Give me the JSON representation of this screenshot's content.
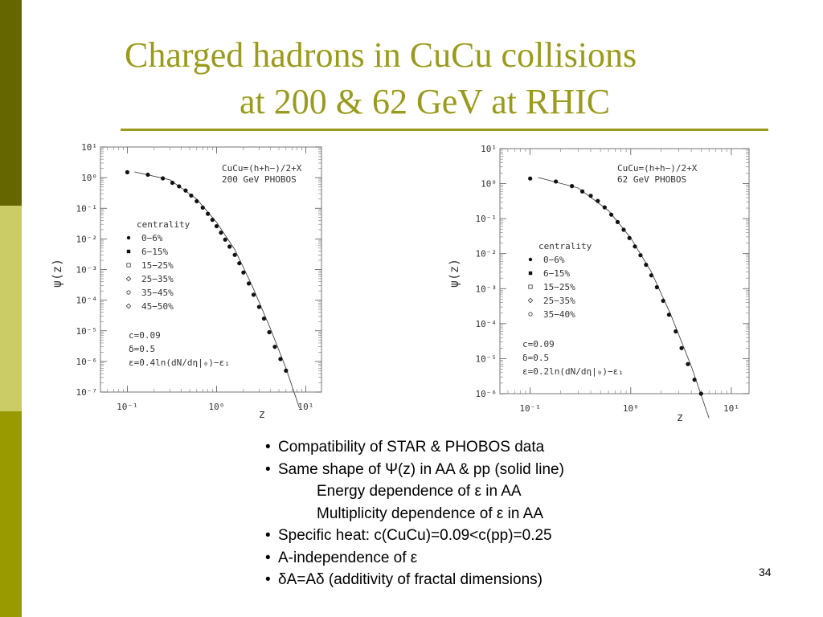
{
  "colors": {
    "accent": "#9a9a1c",
    "sidebar": [
      "#666600",
      "#cccc66",
      "#999900"
    ]
  },
  "slide": {
    "title_line1": "Charged hadrons in CuCu collisions",
    "title_line2": "at 200 & 62 GeV at RHIC",
    "page_number": "34"
  },
  "bullets": [
    {
      "text": "Compatibility of STAR & PHOBOS data",
      "bullet": "•",
      "indent": false
    },
    {
      "text": "Same shape of Ψ(z) in AA & pp (solid line)",
      "bullet": "•",
      "indent": false
    },
    {
      "text": "Energy dependence of ε in  AA",
      "bullet": "",
      "indent": true
    },
    {
      "text": "Multiplicity dependence of ε in AA",
      "bullet": "",
      "indent": true
    },
    {
      "text": "Specific heat: c(CuCu)=0.09<c(pp)=0.25",
      "bullet": "•",
      "indent": false
    },
    {
      "text": "A-independence of ε",
      "bullet": "•",
      "indent": false
    },
    {
      "text": "δA=Aδ (additivity of fractal dimensions)",
      "bullet": "•",
      "indent": false
    }
  ],
  "chart_data": [
    {
      "type": "scatter",
      "xscale": "log",
      "yscale": "log",
      "xlim": [
        0.05,
        15
      ],
      "ylim": [
        1e-07,
        10
      ],
      "xlabel": "z",
      "ylabel": "ψ(z)",
      "xticks": [
        "10⁻¹",
        "10⁰",
        "10¹"
      ],
      "yticks": [
        "10¹",
        "10⁰",
        "10⁻¹",
        "10⁻²",
        "10⁻³",
        "10⁻⁴",
        "10⁻⁵",
        "10⁻⁶",
        "10⁻⁷"
      ],
      "annotation_lines": [
        "CuCu=(h+h−)/2+X",
        "200 GeV PHOBOS"
      ],
      "legend_title": "centrality",
      "legend": [
        {
          "name": "0−6%",
          "marker": "circle-filled"
        },
        {
          "name": "6−15%",
          "marker": "square-filled"
        },
        {
          "name": "15−25%",
          "marker": "square-open"
        },
        {
          "name": "25−35%",
          "marker": "diamond-open"
        },
        {
          "name": "35−45%",
          "marker": "circle-open"
        },
        {
          "name": "45−50%",
          "marker": "diamond-open"
        }
      ],
      "params": [
        "c=0.09",
        "δ=0.5",
        "ε=0.4ln(dN/dη|₀)−ε₁"
      ],
      "points": [
        [
          0.1,
          1.5
        ],
        [
          0.17,
          1.25
        ],
        [
          0.25,
          0.95
        ],
        [
          0.32,
          0.68
        ],
        [
          0.38,
          0.52
        ],
        [
          0.45,
          0.38
        ],
        [
          0.52,
          0.26
        ],
        [
          0.6,
          0.17
        ],
        [
          0.7,
          0.105
        ],
        [
          0.8,
          0.066
        ],
        [
          0.9,
          0.042
        ],
        [
          1.0,
          0.026
        ],
        [
          1.12,
          0.016
        ],
        [
          1.25,
          0.0095
        ],
        [
          1.4,
          0.0056
        ],
        [
          1.6,
          0.003
        ],
        [
          1.8,
          0.0016
        ],
        [
          2.0,
          0.0008
        ],
        [
          2.3,
          0.00035
        ],
        [
          2.6,
          0.00015
        ],
        [
          3.0,
          6e-05
        ],
        [
          3.4,
          2.5e-05
        ],
        [
          3.9,
          9e-06
        ],
        [
          4.5,
          3e-06
        ],
        [
          5.2,
          1.2e-06
        ],
        [
          6.0,
          5e-07
        ]
      ],
      "curve": [
        [
          0.12,
          1.55
        ],
        [
          0.3,
          0.85
        ],
        [
          0.6,
          0.2
        ],
        [
          1.0,
          0.035
        ],
        [
          1.6,
          0.0045
        ],
        [
          2.5,
          0.0003
        ],
        [
          4.0,
          1.2e-05
        ],
        [
          6.0,
          6e-07
        ],
        [
          8.5,
          3e-08
        ]
      ]
    },
    {
      "type": "scatter",
      "xscale": "log",
      "yscale": "log",
      "xlim": [
        0.05,
        15
      ],
      "ylim": [
        1e-06,
        10
      ],
      "xlabel": "z",
      "ylabel": "ψ(z)",
      "xticks": [
        "10⁻¹",
        "10⁰",
        "10¹"
      ],
      "yticks": [
        "10¹",
        "10⁰",
        "10⁻¹",
        "10⁻²",
        "10⁻³",
        "10⁻⁴",
        "10⁻⁵",
        "10⁻⁶"
      ],
      "annotation_lines": [
        "CuCu=(h+h−)/2+X",
        "62 GeV  PHOBOS"
      ],
      "legend_title": "centrality",
      "legend": [
        {
          "name": "0−6%",
          "marker": "circle-filled"
        },
        {
          "name": "6−15%",
          "marker": "square-filled"
        },
        {
          "name": "15−25%",
          "marker": "square-open"
        },
        {
          "name": "25−35%",
          "marker": "diamond-open"
        },
        {
          "name": "35−40%",
          "marker": "circle-open"
        }
      ],
      "params": [
        "c=0.09",
        "δ=0.5",
        "ε=0.2ln(dN/dη|₀)−ε₁"
      ],
      "points": [
        [
          0.1,
          1.4
        ],
        [
          0.18,
          1.15
        ],
        [
          0.26,
          0.85
        ],
        [
          0.33,
          0.6
        ],
        [
          0.4,
          0.45
        ],
        [
          0.47,
          0.32
        ],
        [
          0.55,
          0.21
        ],
        [
          0.64,
          0.13
        ],
        [
          0.74,
          0.08
        ],
        [
          0.85,
          0.048
        ],
        [
          0.97,
          0.028
        ],
        [
          1.1,
          0.016
        ],
        [
          1.25,
          0.009
        ],
        [
          1.42,
          0.0048
        ],
        [
          1.6,
          0.0024
        ],
        [
          1.82,
          0.0011
        ],
        [
          2.1,
          0.00045
        ],
        [
          2.4,
          0.00018
        ],
        [
          2.8,
          6e-05
        ],
        [
          3.2,
          2e-05
        ],
        [
          3.7,
          7e-06
        ],
        [
          4.3,
          2.5e-06
        ],
        [
          5.0,
          1e-06
        ]
      ],
      "curve": [
        [
          0.12,
          1.5
        ],
        [
          0.3,
          0.75
        ],
        [
          0.6,
          0.17
        ],
        [
          1.0,
          0.028
        ],
        [
          1.6,
          0.003
        ],
        [
          2.5,
          0.00018
        ],
        [
          4.0,
          6e-06
        ],
        [
          6.0,
          2e-07
        ]
      ]
    }
  ]
}
